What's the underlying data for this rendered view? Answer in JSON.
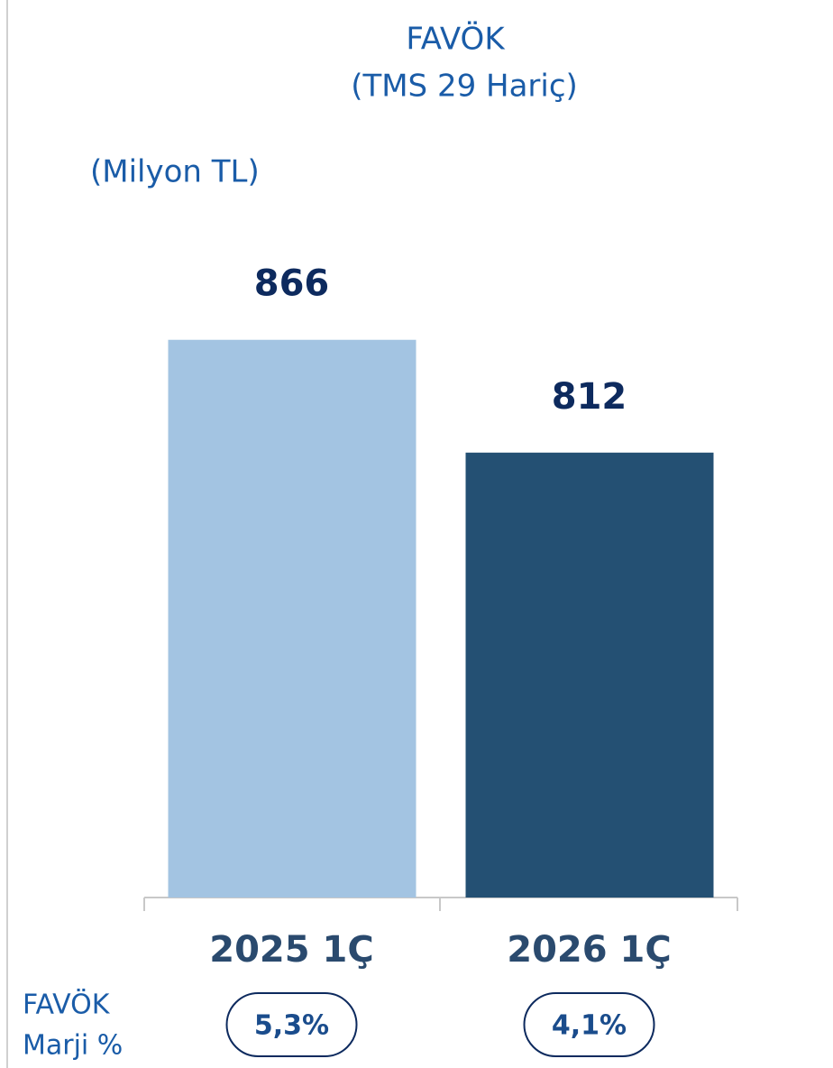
{
  "chart_data": {
    "type": "bar",
    "title": "FAVÖK",
    "subtitle": "(TMS 29 Hariç)",
    "unit_label": "(Milyon TL)",
    "categories": [
      "2025 1Ç",
      "2026 1Ç"
    ],
    "values": [
      866,
      812
    ],
    "colors": [
      "#a3c4e2",
      "#245073"
    ],
    "ylim": [
      599,
      900
    ],
    "margin_label": [
      "FAVÖK",
      "Marji %"
    ],
    "margin_values": [
      5.3,
      4.1
    ],
    "margin_value_labels": [
      "5,3%",
      "4,1%"
    ]
  }
}
